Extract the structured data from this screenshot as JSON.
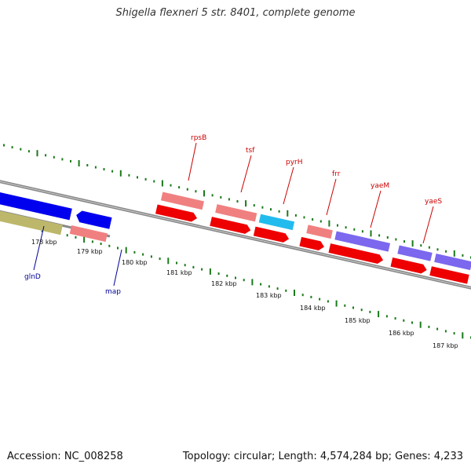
{
  "title": "Shigella flexneri 5 str. 8401, complete genome",
  "footer": {
    "accession": "Accession: NC_008258",
    "summary": "Topology: circular; Length: 4,574,284 bp; Genes: 4,233"
  },
  "colors": {
    "backbone": "#888888",
    "ticks": "#1a7a1a",
    "label_top": "#cc0000",
    "label_bottom": "#000099"
  },
  "ticks": [
    "178 kbp",
    "179 kbp",
    "180 kbp",
    "181 kbp",
    "182 kbp",
    "183 kbp",
    "184 kbp",
    "185 kbp",
    "186 kbp",
    "187 kbp"
  ],
  "gene_labels": [
    {
      "name": "rpsB",
      "side": "top"
    },
    {
      "name": "tsf",
      "side": "top"
    },
    {
      "name": "pyrH",
      "side": "top"
    },
    {
      "name": "frr",
      "side": "top"
    },
    {
      "name": "yaeM",
      "side": "top"
    },
    {
      "name": "yaeS",
      "side": "top"
    },
    {
      "name": "glnD",
      "side": "bottom"
    },
    {
      "name": "map",
      "side": "bottom"
    }
  ],
  "features": [
    {
      "label": "blue-long",
      "color": "#0000ee",
      "strand": "+"
    },
    {
      "label": "olive-long",
      "color": "#bdb76b",
      "strand": "+"
    },
    {
      "label": "blue-short",
      "color": "#0000ee",
      "strand": "-"
    },
    {
      "label": "salmon-map",
      "color": "#f08080",
      "strand": "+"
    },
    {
      "label": "salmon-rpsB",
      "color": "#f08080",
      "strand": "+"
    },
    {
      "label": "red-rpsB",
      "color": "#ee0000",
      "strand": "+"
    },
    {
      "label": "salmon-tsf",
      "color": "#f08080",
      "strand": "+"
    },
    {
      "label": "red-tsf",
      "color": "#ee0000",
      "strand": "+"
    },
    {
      "label": "cyan-pyrH",
      "color": "#22bbee",
      "strand": "+"
    },
    {
      "label": "red-pyrH",
      "color": "#ee0000",
      "strand": "+"
    },
    {
      "label": "salmon-frr",
      "color": "#f08080",
      "strand": "+"
    },
    {
      "label": "red-frr",
      "color": "#ee0000",
      "strand": "+"
    },
    {
      "label": "purple-yaeM",
      "color": "#7b68ee",
      "strand": "+"
    },
    {
      "label": "red-yaeM",
      "color": "#ee0000",
      "strand": "+"
    },
    {
      "label": "purple-yaeS",
      "color": "#7b68ee",
      "strand": "+"
    },
    {
      "label": "red-yaeS",
      "color": "#ee0000",
      "strand": "+"
    },
    {
      "label": "purple-edge",
      "color": "#7b68ee",
      "strand": "+"
    },
    {
      "label": "red-edge",
      "color": "#ee0000",
      "strand": "+"
    }
  ]
}
